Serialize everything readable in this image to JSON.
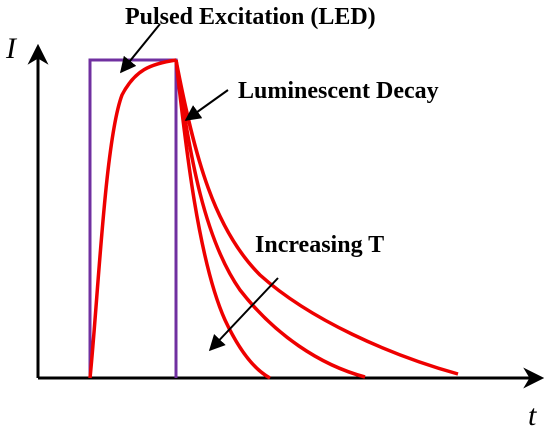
{
  "labels": {
    "y_axis": "I",
    "x_axis": "t",
    "excitation": "Pulsed Excitation (LED)",
    "decay": "Luminescent Decay",
    "temperature": "Increasing T"
  },
  "colors": {
    "axes": "#000000",
    "pulse": "#7030a0",
    "curves": "#ee0000",
    "arrows": "#000000"
  }
}
